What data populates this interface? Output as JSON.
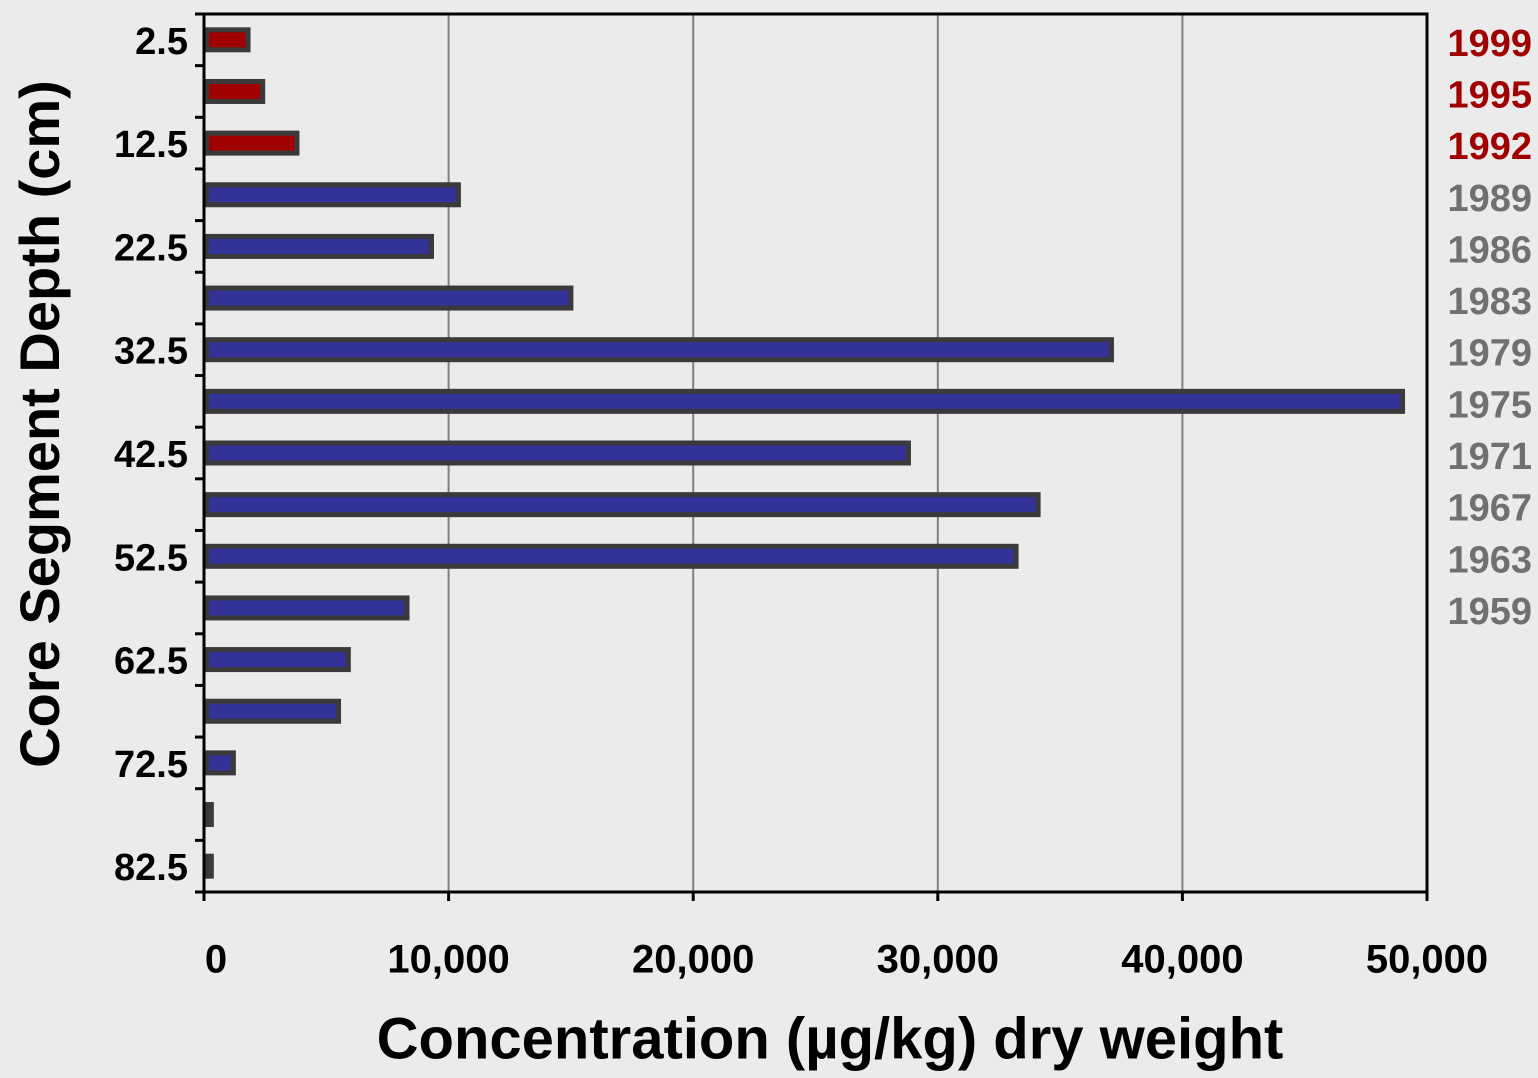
{
  "chart_data": {
    "type": "hbar",
    "x_label": "Concentration (µg/kg) dry weight",
    "y_label": "Core Segment Depth (cm)",
    "categories": [
      "2.5",
      null,
      "12.5",
      null,
      "22.5",
      null,
      "32.5",
      null,
      "42.5",
      null,
      "52.5",
      null,
      "62.5",
      null,
      "72.5",
      null,
      "82.5"
    ],
    "values": [
      1800,
      2400,
      3800,
      10400,
      9300,
      15000,
      37100,
      49000,
      28800,
      34100,
      33200,
      8300,
      5900,
      5500,
      1200,
      300,
      300
    ],
    "bar_colors": [
      "#a00000",
      "#a00000",
      "#a00000",
      "#333399",
      "#333399",
      "#333399",
      "#333399",
      "#333399",
      "#333399",
      "#333399",
      "#333399",
      "#333399",
      "#333399",
      "#333399",
      "#333399",
      "#333399",
      "#333399"
    ],
    "year_labels": [
      "1999",
      "1995",
      "1992",
      "1989",
      "1986",
      "1983",
      "1979",
      "1975",
      "1971",
      "1967",
      "1963",
      "1959"
    ],
    "year_label_colors": [
      "#a00000",
      "#a00000",
      "#a00000",
      "#707070",
      "#707070",
      "#707070",
      "#707070",
      "#707070",
      "#707070",
      "#707070",
      "#707070",
      "#707070"
    ],
    "xlim": [
      0,
      50000
    ],
    "xticks": [
      0,
      {
        "value": 10000,
        "label": "10,000"
      },
      {
        "value": 20000,
        "label": "20,000"
      },
      {
        "value": 30000,
        "label": "30,000"
      },
      {
        "value": 40000,
        "label": "40,000"
      },
      {
        "value": 50000,
        "label": "50,000"
      }
    ],
    "grid": true
  }
}
